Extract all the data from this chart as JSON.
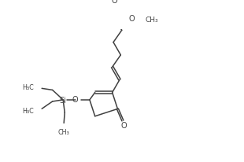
{
  "bg_color": "#ffffff",
  "line_color": "#404040",
  "text_color": "#404040",
  "figsize": [
    3.1,
    2.07
  ],
  "dpi": 100,
  "xlim": [
    0,
    10
  ],
  "ylim": [
    0,
    6.5
  ]
}
